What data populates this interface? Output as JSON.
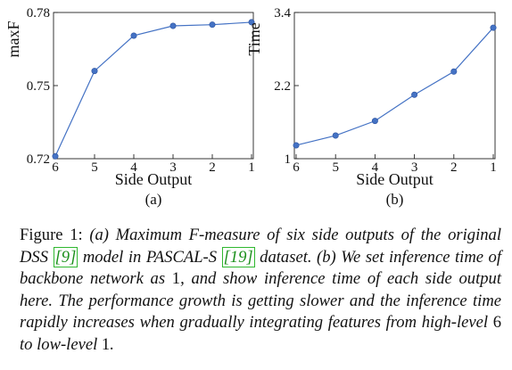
{
  "chart_data": [
    {
      "type": "line",
      "title": "",
      "ylabel": "maxF",
      "xlabel": "Side Output",
      "sublabel": "(a)",
      "categories": [
        "6",
        "5",
        "4",
        "3",
        "2",
        "1"
      ],
      "values": [
        0.721,
        0.756,
        0.7705,
        0.7745,
        0.775,
        0.776
      ],
      "ylim": [
        0.72,
        0.78
      ],
      "yticks": [
        0.72,
        0.75,
        0.78
      ],
      "ytick_labels": [
        "0.72",
        "0.75",
        "0.78"
      ],
      "color": "#4472c4",
      "grid": false
    },
    {
      "type": "line",
      "title": "",
      "ylabel": "Time",
      "xlabel": "Side Output",
      "sublabel": "(b)",
      "categories": [
        "6",
        "5",
        "4",
        "3",
        "2",
        "1"
      ],
      "values": [
        1.22,
        1.38,
        1.62,
        2.05,
        2.43,
        3.15
      ],
      "ylim": [
        1,
        3.4
      ],
      "yticks": [
        1,
        2.2,
        3.4
      ],
      "ytick_labels": [
        "1",
        "2.2",
        "3.4"
      ],
      "color": "#4472c4",
      "grid": false
    }
  ],
  "caption": {
    "label": "Figure 1:",
    "part1": " (a) Maximum F-measure of six side outputs of the original DSS ",
    "ref1": "[9]",
    "part2": " model in PASCAL-S ",
    "ref2": "[19]",
    "part3": " dataset. (b) We set inference time of backbone network as ",
    "one_a": "1",
    "part4": ", and show inference time of each side output here. The performance growth is getting slower and the inference time rapidly increases when gradually integrating features from high-level ",
    "six": "6",
    "part5": " to low-level ",
    "one_b": "1",
    "part6": "."
  }
}
